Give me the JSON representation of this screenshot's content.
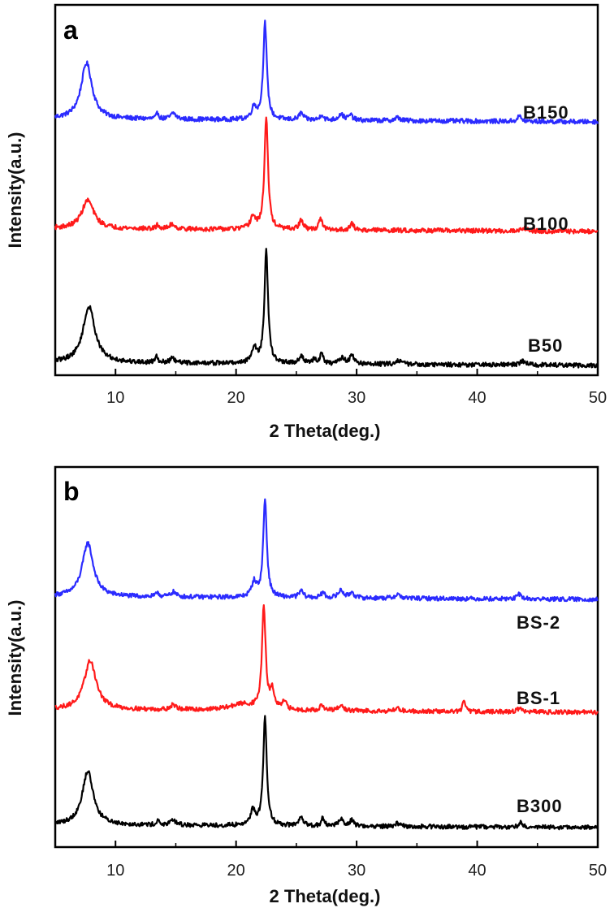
{
  "figure": {
    "background": "#ffffff"
  },
  "chart_data": [
    {
      "type": "line",
      "panel_label": "a",
      "xlabel": "2 Theta(deg.)",
      "ylabel": "Intensity(a.u.)",
      "xlim": [
        5,
        50
      ],
      "xticks": [
        10,
        20,
        30,
        40,
        50
      ],
      "x_tick_labels": [
        "10",
        "20",
        "30",
        "40",
        "50"
      ],
      "grid": false,
      "series": [
        {
          "name": "B150",
          "color": "#2b2bff",
          "offset": 2.0,
          "scale": 1.0,
          "peaks": [
            [
              7.6,
              0.55,
              0.55
            ],
            [
              13.5,
              0.06,
              0.12
            ],
            [
              14.8,
              0.06,
              0.25
            ],
            [
              21.5,
              0.12,
              0.25
            ],
            [
              22.4,
              0.95,
              0.18
            ],
            [
              25.4,
              0.07,
              0.2
            ],
            [
              27.1,
              0.06,
              0.15
            ],
            [
              28.7,
              0.06,
              0.25
            ],
            [
              29.5,
              0.05,
              0.2
            ],
            [
              33.4,
              0.03,
              0.25
            ],
            [
              43.5,
              0.05,
              0.2
            ]
          ]
        },
        {
          "name": "B100",
          "color": "#ff1a1a",
          "offset": 1.0,
          "scale": 1.0,
          "peaks": [
            [
              7.7,
              0.28,
              0.6
            ],
            [
              13.5,
              0.04,
              0.12
            ],
            [
              14.7,
              0.05,
              0.25
            ],
            [
              21.4,
              0.12,
              0.25
            ],
            [
              22.5,
              1.1,
              0.18
            ],
            [
              25.4,
              0.09,
              0.2
            ],
            [
              27.0,
              0.12,
              0.15
            ],
            [
              29.6,
              0.06,
              0.2
            ],
            [
              43.9,
              0.03,
              0.3
            ]
          ]
        },
        {
          "name": "B50",
          "color": "#000000",
          "offset": 0.0,
          "scale": 1.0,
          "peaks": [
            [
              7.8,
              0.55,
              0.6
            ],
            [
              13.4,
              0.08,
              0.12
            ],
            [
              14.7,
              0.04,
              0.25
            ],
            [
              21.5,
              0.15,
              0.25
            ],
            [
              22.5,
              1.1,
              0.18
            ],
            [
              25.4,
              0.08,
              0.2
            ],
            [
              26.5,
              0.05,
              0.15
            ],
            [
              27.1,
              0.1,
              0.15
            ],
            [
              28.8,
              0.06,
              0.25
            ],
            [
              29.6,
              0.09,
              0.2
            ],
            [
              33.5,
              0.04,
              0.3
            ],
            [
              43.8,
              0.04,
              0.3
            ]
          ]
        }
      ]
    },
    {
      "type": "line",
      "panel_label": "b",
      "xlabel": "2 Theta(deg.)",
      "ylabel": "Intensity(a.u.)",
      "xlim": [
        5,
        50
      ],
      "xticks": [
        10,
        20,
        30,
        40,
        50
      ],
      "x_tick_labels": [
        "10",
        "20",
        "30",
        "40",
        "50"
      ],
      "grid": false,
      "series": [
        {
          "name": "BS-2",
          "color": "#2b2bff",
          "offset": 2.0,
          "scale": 1.0,
          "peaks": [
            [
              7.7,
              0.55,
              0.55
            ],
            [
              13.5,
              0.05,
              0.12
            ],
            [
              14.8,
              0.05,
              0.25
            ],
            [
              21.5,
              0.15,
              0.25
            ],
            [
              22.4,
              1.0,
              0.18
            ],
            [
              25.4,
              0.07,
              0.2
            ],
            [
              27.2,
              0.06,
              0.15
            ],
            [
              28.7,
              0.08,
              0.25
            ],
            [
              29.6,
              0.06,
              0.2
            ],
            [
              33.4,
              0.04,
              0.25
            ],
            [
              43.5,
              0.05,
              0.2
            ]
          ]
        },
        {
          "name": "BS-1",
          "color": "#ff1a1a",
          "offset": 1.0,
          "scale": 1.0,
          "peaks": [
            [
              7.9,
              0.5,
              0.6
            ],
            [
              14.8,
              0.05,
              0.25
            ],
            [
              20.5,
              0.06,
              1.2
            ],
            [
              22.3,
              1.05,
              0.18
            ],
            [
              23.0,
              0.18,
              0.2
            ],
            [
              24.0,
              0.08,
              0.2
            ],
            [
              27.1,
              0.05,
              0.2
            ],
            [
              28.7,
              0.05,
              0.25
            ],
            [
              33.4,
              0.03,
              0.25
            ],
            [
              38.9,
              0.12,
              0.12
            ],
            [
              43.5,
              0.04,
              0.2
            ]
          ]
        },
        {
          "name": "B300",
          "color": "#000000",
          "offset": 0.0,
          "scale": 1.0,
          "peaks": [
            [
              7.7,
              0.55,
              0.55
            ],
            [
              13.5,
              0.05,
              0.12
            ],
            [
              14.8,
              0.05,
              0.25
            ],
            [
              21.4,
              0.15,
              0.25
            ],
            [
              22.4,
              1.1,
              0.18
            ],
            [
              25.4,
              0.08,
              0.2
            ],
            [
              27.2,
              0.08,
              0.15
            ],
            [
              28.7,
              0.07,
              0.25
            ],
            [
              29.6,
              0.06,
              0.2
            ],
            [
              33.4,
              0.03,
              0.25
            ],
            [
              43.6,
              0.05,
              0.2
            ]
          ]
        }
      ]
    }
  ]
}
